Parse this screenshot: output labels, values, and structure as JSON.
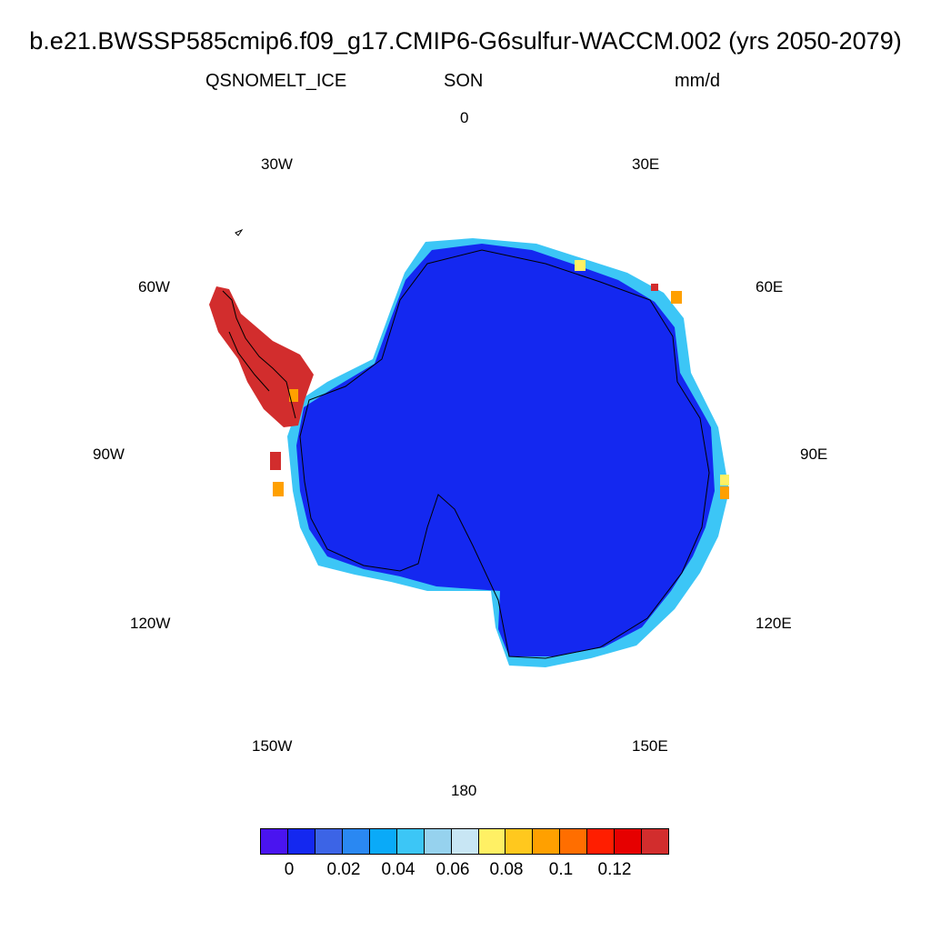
{
  "title": "b.e21.BWSSP585cmip6.f09_g17.CMIP6-G6sulfur-WACCM.002 (yrs 2050-2079)",
  "variable": "QSNOMELT_ICE",
  "season": "SON",
  "units": "mm/d",
  "longitude_labels": {
    "lon_0": "0",
    "lon_30e": "30E",
    "lon_60e": "60E",
    "lon_90e": "90E",
    "lon_120e": "120E",
    "lon_150e": "150E",
    "lon_180": "180",
    "lon_150w": "150W",
    "lon_120w": "120W",
    "lon_90w": "90W",
    "lon_60w": "60W",
    "lon_30w": "30W"
  },
  "colorbar": {
    "colors": [
      "#4a14f0",
      "#1428f0",
      "#3c64e6",
      "#2a88f2",
      "#0aaaf8",
      "#3cc6f6",
      "#96d2ee",
      "#c8e6f4",
      "#fff064",
      "#ffc81e",
      "#ffa000",
      "#ff6e00",
      "#ff1e00",
      "#e60000",
      "#d22d2d"
    ],
    "labels": {
      "l0": "0",
      "l1": "0.02",
      "l2": "0.04",
      "l3": "0.06",
      "l4": "0.08",
      "l5": "0.1",
      "l6": "0.12"
    }
  },
  "map_colors": {
    "ice_sheet": "#1428f0",
    "coast_light_blue": "#3cc6f6",
    "peninsula": "#d22d2d",
    "yellow": "#fff064",
    "orange": "#ffa000"
  }
}
